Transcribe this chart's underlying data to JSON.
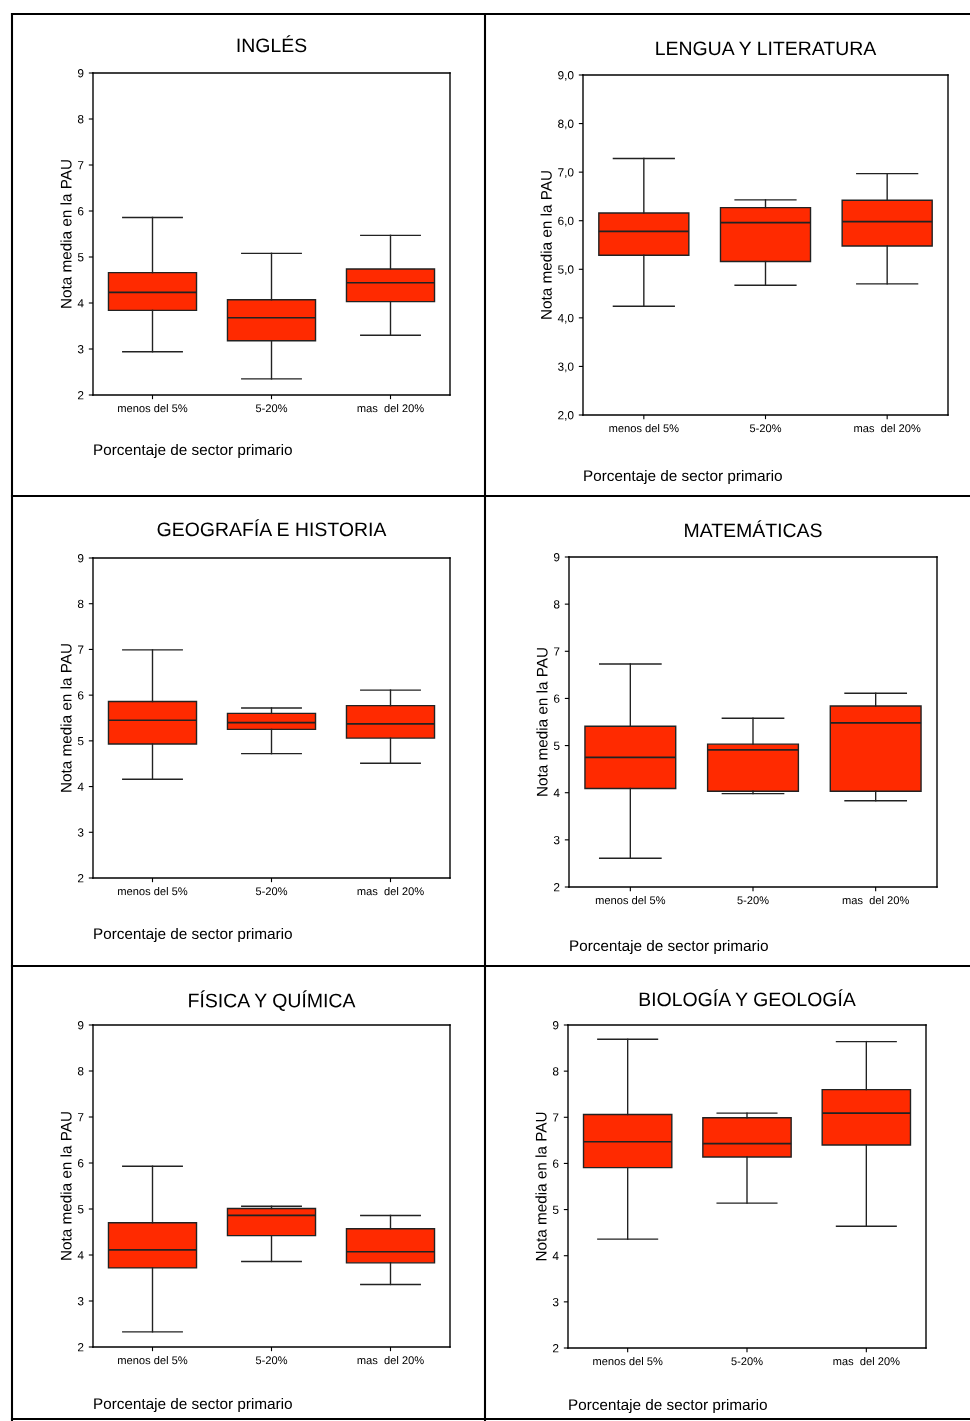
{
  "chart_data": [
    {
      "type": "box",
      "title": "INGLÉS",
      "xlabel": "Porcentaje de sector primario",
      "ylabel": "Nota media en la PAU",
      "categories": [
        "menos del 5%",
        "5-20%",
        "mas  del 20%"
      ],
      "ylim": [
        2,
        9
      ],
      "yticks": [
        2,
        3,
        4,
        5,
        6,
        7,
        8,
        9
      ],
      "grid": false,
      "series": [
        {
          "color": "#ff2a00",
          "boxes": [
            {
              "low": 2.94,
              "q1": 3.84,
              "median": 4.23,
              "q3": 4.66,
              "high": 5.86
            },
            {
              "low": 2.35,
              "q1": 3.18,
              "median": 3.68,
              "q3": 4.07,
              "high": 5.08
            },
            {
              "low": 3.3,
              "q1": 4.03,
              "median": 4.44,
              "q3": 4.74,
              "high": 5.47
            }
          ]
        }
      ]
    },
    {
      "type": "box",
      "title": "LENGUA Y LITERATURA",
      "xlabel": "Porcentaje de sector primario",
      "ylabel": "Nota media en la PAU",
      "categories": [
        "menos del 5%",
        "5-20%",
        "mas  del 20%"
      ],
      "ylim": [
        2,
        9
      ],
      "yticks": [
        {
          "value": 2,
          "label": "2,0"
        },
        {
          "value": 3,
          "label": "3,0"
        },
        {
          "value": 4,
          "label": "4,0"
        },
        {
          "value": 5,
          "label": "5,0"
        },
        {
          "value": 6,
          "label": "6,0"
        },
        {
          "value": 7,
          "label": "7,0"
        },
        {
          "value": 8,
          "label": "8,0"
        },
        {
          "value": 9,
          "label": "9,0"
        }
      ],
      "grid": false,
      "series": [
        {
          "color": "#ff2a00",
          "boxes": [
            {
              "low": 4.24,
              "q1": 5.29,
              "median": 5.78,
              "q3": 6.16,
              "high": 7.28
            },
            {
              "low": 4.67,
              "q1": 5.16,
              "median": 5.96,
              "q3": 6.27,
              "high": 6.43
            },
            {
              "low": 4.7,
              "q1": 5.48,
              "median": 5.98,
              "q3": 6.42,
              "high": 6.97
            }
          ]
        }
      ]
    },
    {
      "type": "box",
      "title": "GEOGRAFÍA E HISTORIA",
      "xlabel": "Porcentaje de sector primario",
      "ylabel": "Nota media en la PAU",
      "categories": [
        "menos del 5%",
        "5-20%",
        "mas  del 20%"
      ],
      "ylim": [
        2,
        9
      ],
      "yticks": [
        2,
        3,
        4,
        5,
        6,
        7,
        8,
        9
      ],
      "grid": false,
      "series": [
        {
          "color": "#ff2a00",
          "boxes": [
            {
              "low": 4.16,
              "q1": 4.93,
              "median": 5.45,
              "q3": 5.86,
              "high": 6.99
            },
            {
              "low": 4.72,
              "q1": 5.25,
              "median": 5.4,
              "q3": 5.6,
              "high": 5.72
            },
            {
              "low": 4.51,
              "q1": 5.06,
              "median": 5.37,
              "q3": 5.77,
              "high": 6.11
            }
          ]
        }
      ]
    },
    {
      "type": "box",
      "title": "MATEMÁTICAS",
      "xlabel": "Porcentaje de sector primario",
      "ylabel": "Nota media en la PAU",
      "categories": [
        "menos del 5%",
        "5-20%",
        "mas  del 20%"
      ],
      "ylim": [
        2,
        9
      ],
      "yticks": [
        2,
        3,
        4,
        5,
        6,
        7,
        8,
        9
      ],
      "grid": false,
      "series": [
        {
          "color": "#ff2a00",
          "boxes": [
            {
              "low": 2.61,
              "q1": 4.09,
              "median": 4.75,
              "q3": 5.41,
              "high": 6.73
            },
            {
              "low": 3.98,
              "q1": 4.03,
              "median": 4.91,
              "q3": 5.03,
              "high": 5.58
            },
            {
              "low": 3.83,
              "q1": 4.03,
              "median": 5.48,
              "q3": 5.84,
              "high": 6.11
            }
          ]
        }
      ]
    },
    {
      "type": "box",
      "title": "FÍSICA Y QUÍMICA",
      "xlabel": "Porcentaje de sector primario",
      "ylabel": "Nota media en la PAU",
      "categories": [
        "menos del 5%",
        "5-20%",
        "mas  del 20%"
      ],
      "ylim": [
        2,
        9
      ],
      "yticks": [
        2,
        3,
        4,
        5,
        6,
        7,
        8,
        9
      ],
      "grid": false,
      "series": [
        {
          "color": "#ff2a00",
          "boxes": [
            {
              "low": 2.33,
              "q1": 3.72,
              "median": 4.11,
              "q3": 4.7,
              "high": 5.93
            },
            {
              "low": 3.86,
              "q1": 4.42,
              "median": 4.86,
              "q3": 5.01,
              "high": 5.06
            },
            {
              "low": 3.36,
              "q1": 3.83,
              "median": 4.07,
              "q3": 4.57,
              "high": 4.86
            }
          ]
        }
      ]
    },
    {
      "type": "box",
      "title": "BIOLOGÍA Y GEOLOGÍA",
      "xlabel": "Porcentaje de sector primario",
      "ylabel": "Nota media en la PAU",
      "categories": [
        "menos del 5%",
        "5-20%",
        "mas  del 20%"
      ],
      "ylim": [
        2,
        9
      ],
      "yticks": [
        2,
        3,
        4,
        5,
        6,
        7,
        8,
        9
      ],
      "grid": false,
      "series": [
        {
          "color": "#ff2a00",
          "boxes": [
            {
              "low": 4.36,
              "q1": 5.91,
              "median": 6.47,
              "q3": 7.06,
              "high": 8.69
            },
            {
              "low": 5.14,
              "q1": 6.14,
              "median": 6.43,
              "q3": 6.99,
              "high": 7.09
            },
            {
              "low": 4.64,
              "q1": 6.4,
              "median": 7.09,
              "q3": 7.6,
              "high": 8.64
            }
          ]
        }
      ]
    }
  ]
}
